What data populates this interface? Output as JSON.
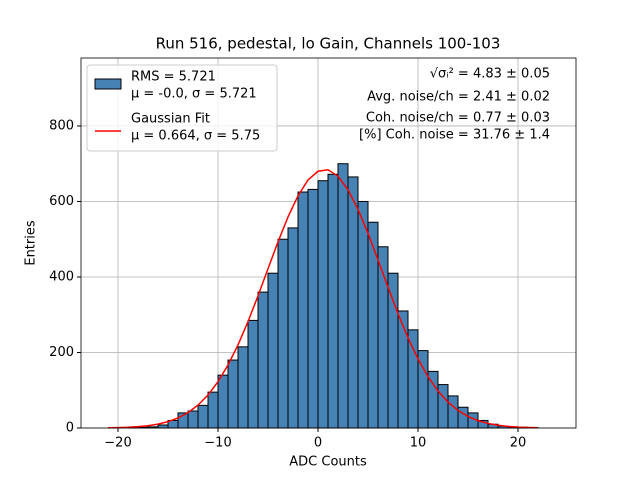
{
  "chart_data": {
    "type": "histogram",
    "title": "Run 516, pedestal, lo Gain, Channels 100-103",
    "xlabel": "ADC Counts",
    "ylabel": "Entries",
    "xlim": [
      -23.7,
      25.8
    ],
    "ylim": [
      0,
      980
    ],
    "xticks": [
      {
        "value": -20,
        "label": "−20"
      },
      {
        "value": -10,
        "label": "−10"
      },
      0,
      10,
      20
    ],
    "yticks": [
      0,
      200,
      400,
      600,
      800
    ],
    "grid": true,
    "legend": "upper left",
    "bins": [
      -21,
      -20,
      -19,
      -18,
      -17,
      -16,
      -15,
      -14,
      -13,
      -12,
      -11,
      -10,
      -9,
      -8,
      -7,
      -6,
      -5,
      -4,
      -3,
      -2,
      -1,
      0,
      1,
      2,
      3,
      4,
      5,
      6,
      7,
      8,
      9,
      10,
      11,
      12,
      13,
      14,
      15,
      16,
      17,
      18,
      19,
      20,
      21,
      22,
      23
    ],
    "series": [
      {
        "name": [
          "RMS = 5.721",
          "μ = -0.0, σ = 5.721"
        ],
        "type": "histogram",
        "color": "#4682b4",
        "edgecolor": "#000000",
        "values": [
          0,
          0,
          1,
          2,
          3,
          8,
          20,
          40,
          45,
          60,
          95,
          140,
          180,
          215,
          285,
          360,
          410,
          500,
          530,
          625,
          632,
          655,
          672,
          700,
          665,
          600,
          545,
          480,
          410,
          310,
          260,
          205,
          150,
          115,
          85,
          55,
          40,
          20,
          10,
          5,
          3,
          2,
          1,
          0
        ]
      },
      {
        "name": [
          "Gaussian Fit",
          "μ = 0.664, σ = 5.75"
        ],
        "type": "line",
        "color": "#ff0000",
        "x": [
          -21,
          -20,
          -19,
          -18,
          -17,
          -16,
          -15,
          -14,
          -13,
          -12,
          -11,
          -10,
          -9,
          -8,
          -7,
          -6,
          -5,
          -4,
          -3,
          -2,
          -1,
          0,
          1,
          2,
          3,
          4,
          5,
          6,
          7,
          8,
          9,
          10,
          11,
          12,
          13,
          14,
          15,
          16,
          17,
          18,
          19,
          20,
          21,
          22
        ],
        "values": [
          0.6,
          1.1,
          2.0,
          3.5,
          6.1,
          10.3,
          16.8,
          26.5,
          40.7,
          60.6,
          87.5,
          122.7,
          166.9,
          220.1,
          281.8,
          350,
          421.7,
          493,
          559,
          615,
          657,
          680,
          684,
          667,
          631,
          579,
          516,
          445,
          373,
          303,
          239,
          183,
          136,
          98,
          68.6,
          46.5,
          30.6,
          19.5,
          12.1,
          7.3,
          4.2,
          2.4,
          1.3,
          0.7
        ]
      }
    ],
    "annotations": [
      "√σᵢ² = 4.83 ± 0.05",
      "Avg. noise/ch = 2.41 ± 0.02",
      "Coh. noise/ch = 0.77 ± 0.03",
      "[%] Coh. noise = 31.76 ± 1.4"
    ]
  }
}
